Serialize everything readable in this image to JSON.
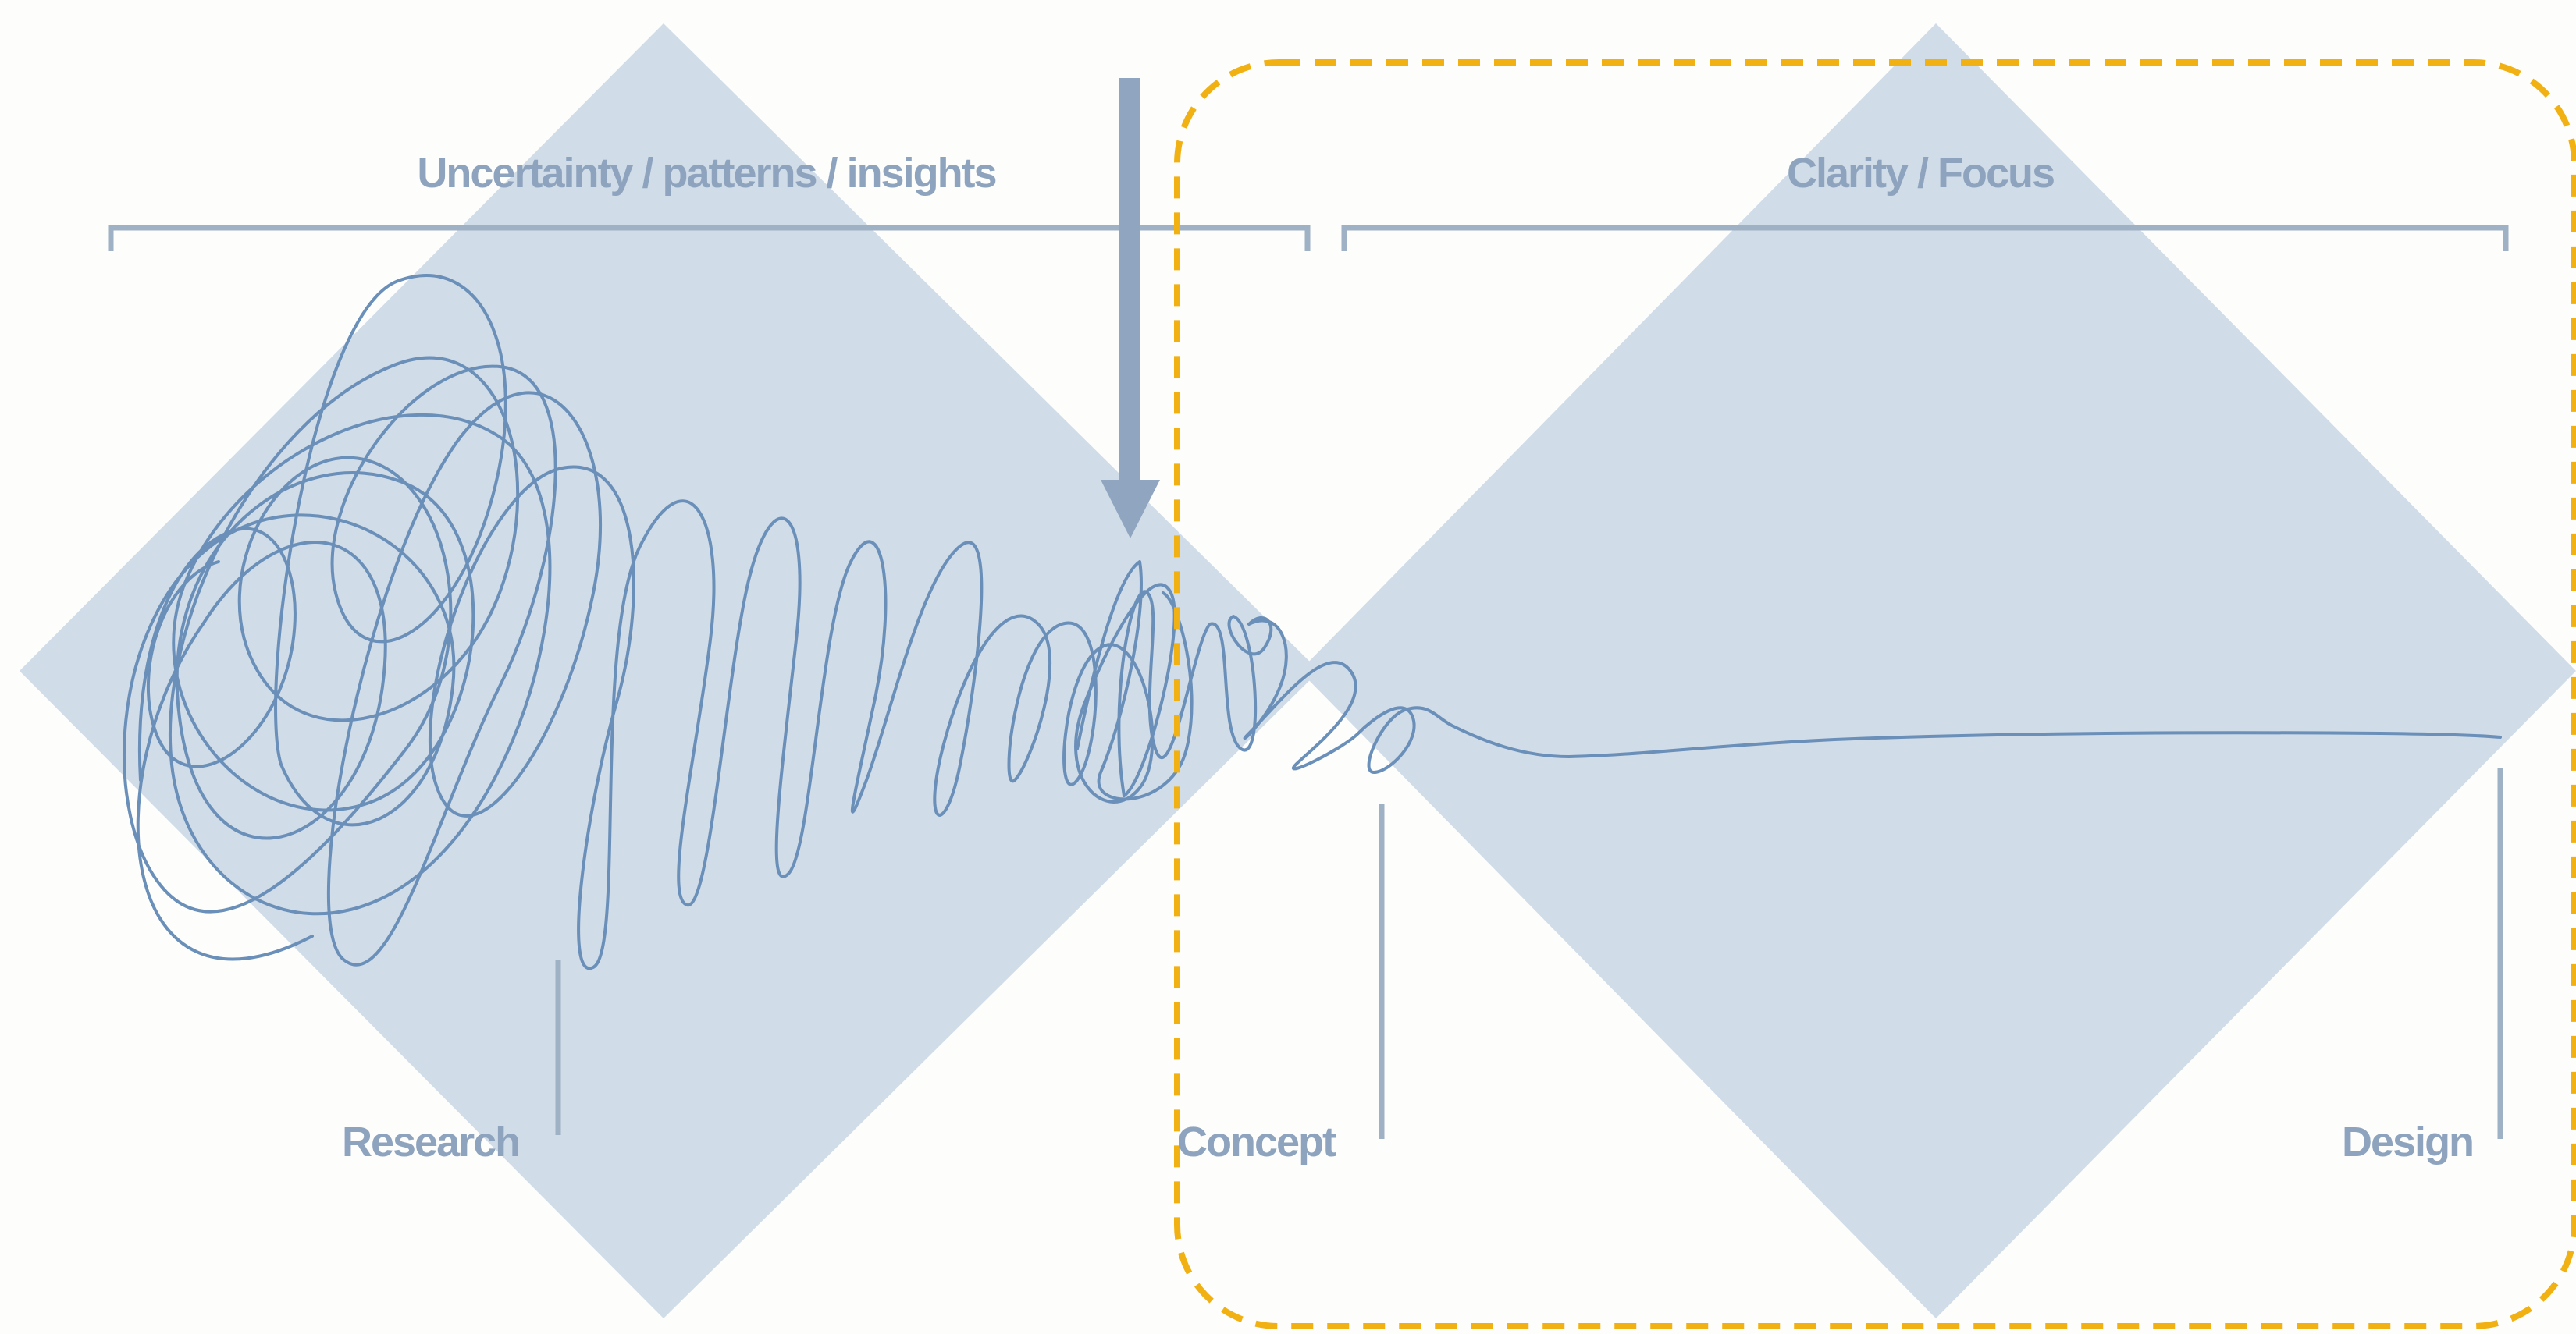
{
  "diagram": {
    "headers": {
      "left": "Uncertainty / patterns / insights",
      "right": "Clarity / Focus"
    },
    "stages": {
      "research": "Research",
      "concept": "Concept",
      "design": "Design"
    },
    "colors": {
      "diamond": "#d0dce8",
      "bracket": "#9fb1c5",
      "squiggle": "#6a8fb8",
      "arrow": "#8fa5c0",
      "label": "#8ea4be",
      "highlight_border": "#f2b112",
      "background": "#fdfdfc"
    },
    "icons": {
      "arrow": "down-arrow-icon"
    }
  }
}
